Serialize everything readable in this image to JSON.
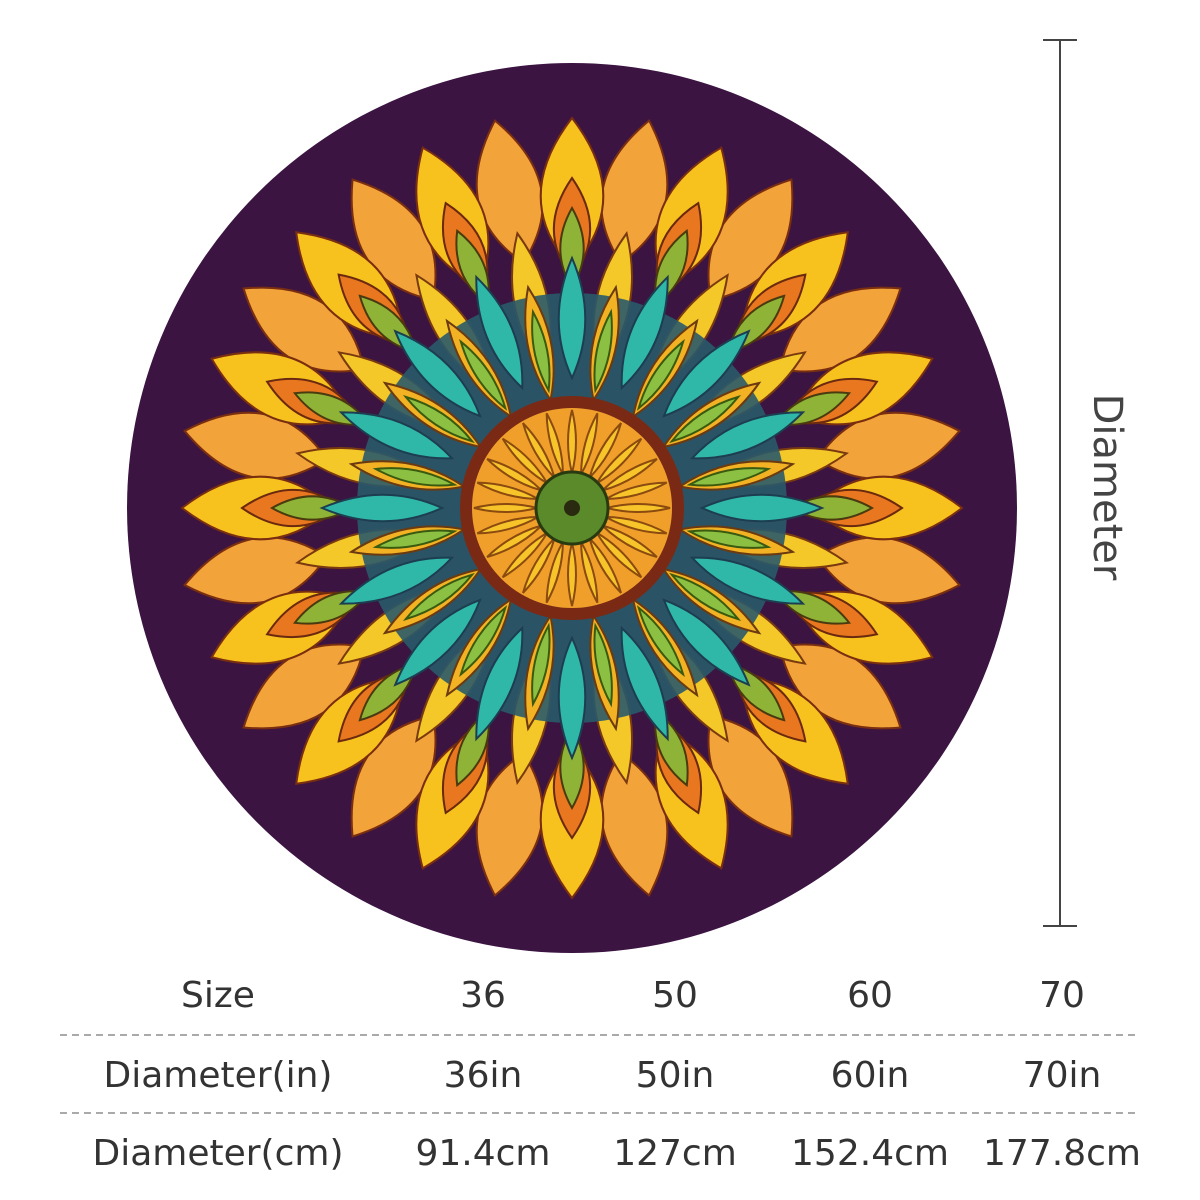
{
  "dimension": {
    "label": "Diameter"
  },
  "table": {
    "rows": [
      [
        "Size",
        "36",
        "50",
        "60",
        "70"
      ],
      [
        "Diameter(in)",
        "36in",
        "50in",
        "60in",
        "70in"
      ],
      [
        "Diameter(cm)",
        "91.4cm",
        "127cm",
        "152.4cm",
        "177.8cm"
      ]
    ]
  }
}
